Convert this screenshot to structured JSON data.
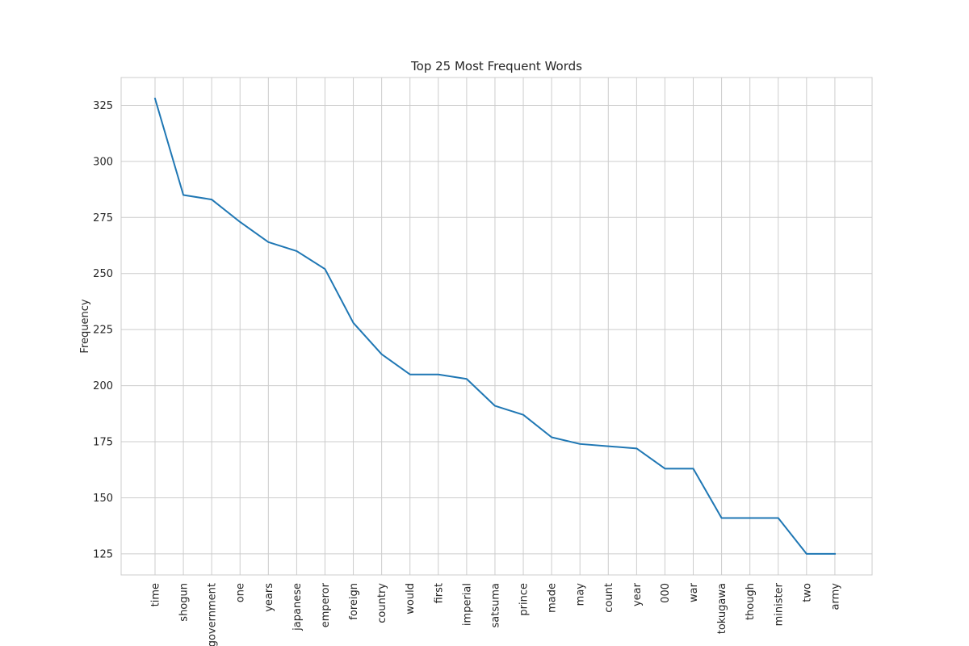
{
  "chart_data": {
    "type": "line",
    "title": "Top 25 Most Frequent Words",
    "xlabel": "",
    "ylabel": "Frequency",
    "categories": [
      "time",
      "shogun",
      "government",
      "one",
      "years",
      "japanese",
      "emperor",
      "foreign",
      "country",
      "would",
      "first",
      "imperial",
      "satsuma",
      "prince",
      "made",
      "may",
      "count",
      "year",
      "000",
      "war",
      "tokugawa",
      "though",
      "minister",
      "two",
      "army"
    ],
    "series": [
      {
        "values": [
          328,
          285,
          283,
          273,
          264,
          260,
          252,
          228,
          214,
          205,
          205,
          203,
          191,
          187,
          177,
          174,
          173,
          172,
          163,
          163,
          141,
          141,
          141,
          125,
          125
        ]
      }
    ],
    "ylim": [
      115.6,
      337.4
    ],
    "yticks": [
      125,
      150,
      175,
      200,
      225,
      250,
      275,
      300,
      325
    ],
    "grid": true,
    "legend": "none",
    "colors": {
      "line": "#1f77b4",
      "grid": "#cccccc",
      "frame": "#cccccc",
      "text": "#262626",
      "background": "#ffffff"
    }
  }
}
